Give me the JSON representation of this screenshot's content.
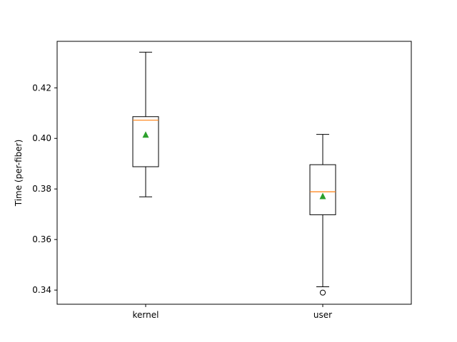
{
  "chart_data": {
    "type": "box",
    "title": "",
    "xlabel": "",
    "ylabel": "Time (per-fiber)",
    "ylim": [
      0.3344,
      0.4384
    ],
    "yticks": [
      0.34,
      0.36,
      0.38,
      0.4,
      0.42
    ],
    "ytick_labels": [
      "0.34",
      "0.36",
      "0.38",
      "0.40",
      "0.42"
    ],
    "grid": false,
    "categories": [
      "kernel",
      "user"
    ],
    "boxes": [
      {
        "name": "kernel",
        "whisker_low": 0.3769,
        "q1": 0.3888,
        "median": 0.4072,
        "q3": 0.4086,
        "whisker_high": 0.4341,
        "mean": 0.4014,
        "outliers": []
      },
      {
        "name": "user",
        "whisker_low": 0.3413,
        "q1": 0.3698,
        "median": 0.3789,
        "q3": 0.3896,
        "whisker_high": 0.4016,
        "mean": 0.3771,
        "outliers": [
          0.339
        ]
      }
    ],
    "colors": {
      "box": "#000000",
      "median": "#ff7f0e",
      "mean": "#2ca02c",
      "frame": "#000000"
    }
  }
}
